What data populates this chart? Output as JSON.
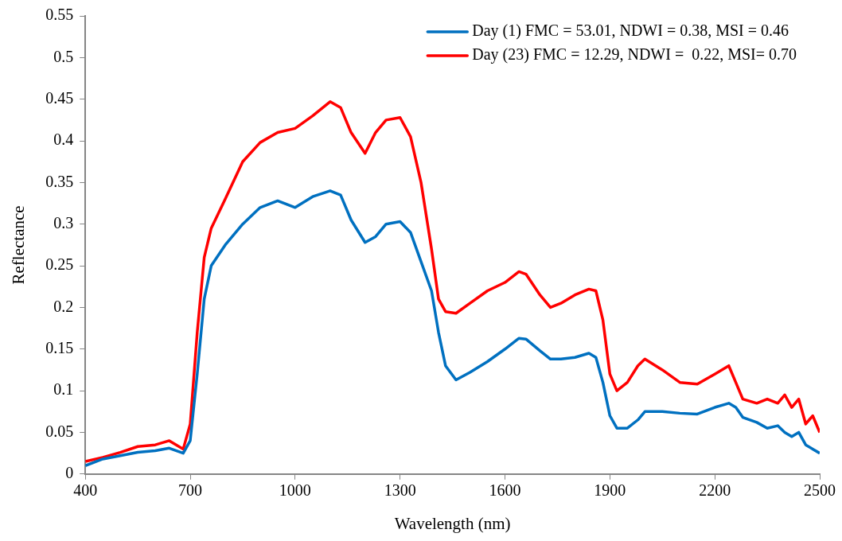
{
  "chart_data": {
    "type": "line",
    "xlabel": "Wavelength (nm)",
    "ylabel": "Reflectance",
    "x": [
      400,
      450,
      500,
      550,
      600,
      640,
      680,
      700,
      720,
      740,
      760,
      800,
      850,
      900,
      950,
      1000,
      1050,
      1100,
      1130,
      1160,
      1200,
      1230,
      1260,
      1300,
      1330,
      1360,
      1390,
      1410,
      1430,
      1460,
      1500,
      1550,
      1600,
      1640,
      1660,
      1700,
      1730,
      1760,
      1800,
      1840,
      1860,
      1880,
      1900,
      1920,
      1950,
      1980,
      2000,
      2050,
      2100,
      2150,
      2200,
      2240,
      2260,
      2280,
      2320,
      2350,
      2380,
      2400,
      2420,
      2440,
      2460,
      2480,
      2500
    ],
    "series": [
      {
        "name": "Day (1) FMC = 53.01, NDWI = 0.38, MSI = 0.46",
        "color": "#0070c0",
        "values": [
          0.01,
          0.018,
          0.022,
          0.026,
          0.028,
          0.031,
          0.025,
          0.04,
          0.12,
          0.21,
          0.25,
          0.275,
          0.3,
          0.32,
          0.328,
          0.32,
          0.333,
          0.34,
          0.335,
          0.305,
          0.278,
          0.285,
          0.3,
          0.303,
          0.29,
          0.255,
          0.22,
          0.17,
          0.13,
          0.113,
          0.122,
          0.135,
          0.15,
          0.163,
          0.162,
          0.148,
          0.138,
          0.138,
          0.14,
          0.145,
          0.14,
          0.11,
          0.07,
          0.055,
          0.055,
          0.065,
          0.075,
          0.075,
          0.073,
          0.072,
          0.08,
          0.085,
          0.08,
          0.068,
          0.062,
          0.055,
          0.058,
          0.05,
          0.045,
          0.05,
          0.035,
          0.03,
          0.025
        ]
      },
      {
        "name": "Day (23) FMC = 12.29, NDWI =  0.22, MSI= 0.70",
        "color": "#ff0000",
        "values": [
          0.015,
          0.02,
          0.026,
          0.033,
          0.035,
          0.04,
          0.03,
          0.06,
          0.17,
          0.26,
          0.295,
          0.33,
          0.375,
          0.398,
          0.41,
          0.415,
          0.43,
          0.447,
          0.44,
          0.41,
          0.385,
          0.41,
          0.425,
          0.428,
          0.405,
          0.35,
          0.27,
          0.21,
          0.195,
          0.193,
          0.205,
          0.22,
          0.23,
          0.243,
          0.24,
          0.215,
          0.2,
          0.205,
          0.215,
          0.222,
          0.22,
          0.185,
          0.12,
          0.1,
          0.11,
          0.13,
          0.138,
          0.125,
          0.11,
          0.108,
          0.12,
          0.13,
          0.11,
          0.09,
          0.085,
          0.09,
          0.085,
          0.095,
          0.08,
          0.09,
          0.06,
          0.07,
          0.05
        ]
      }
    ],
    "xlim": [
      400,
      2500
    ],
    "xticks": [
      400,
      700,
      1000,
      1300,
      1600,
      1900,
      2200,
      2500
    ],
    "ylim": [
      0,
      0.55
    ],
    "yticks": [
      0,
      0.05,
      0.1,
      0.15,
      0.2,
      0.25,
      0.3,
      0.35,
      0.4,
      0.45,
      0.5,
      0.55
    ],
    "grid": false,
    "legend": "top right",
    "marker": "none",
    "line_style": "solid"
  }
}
